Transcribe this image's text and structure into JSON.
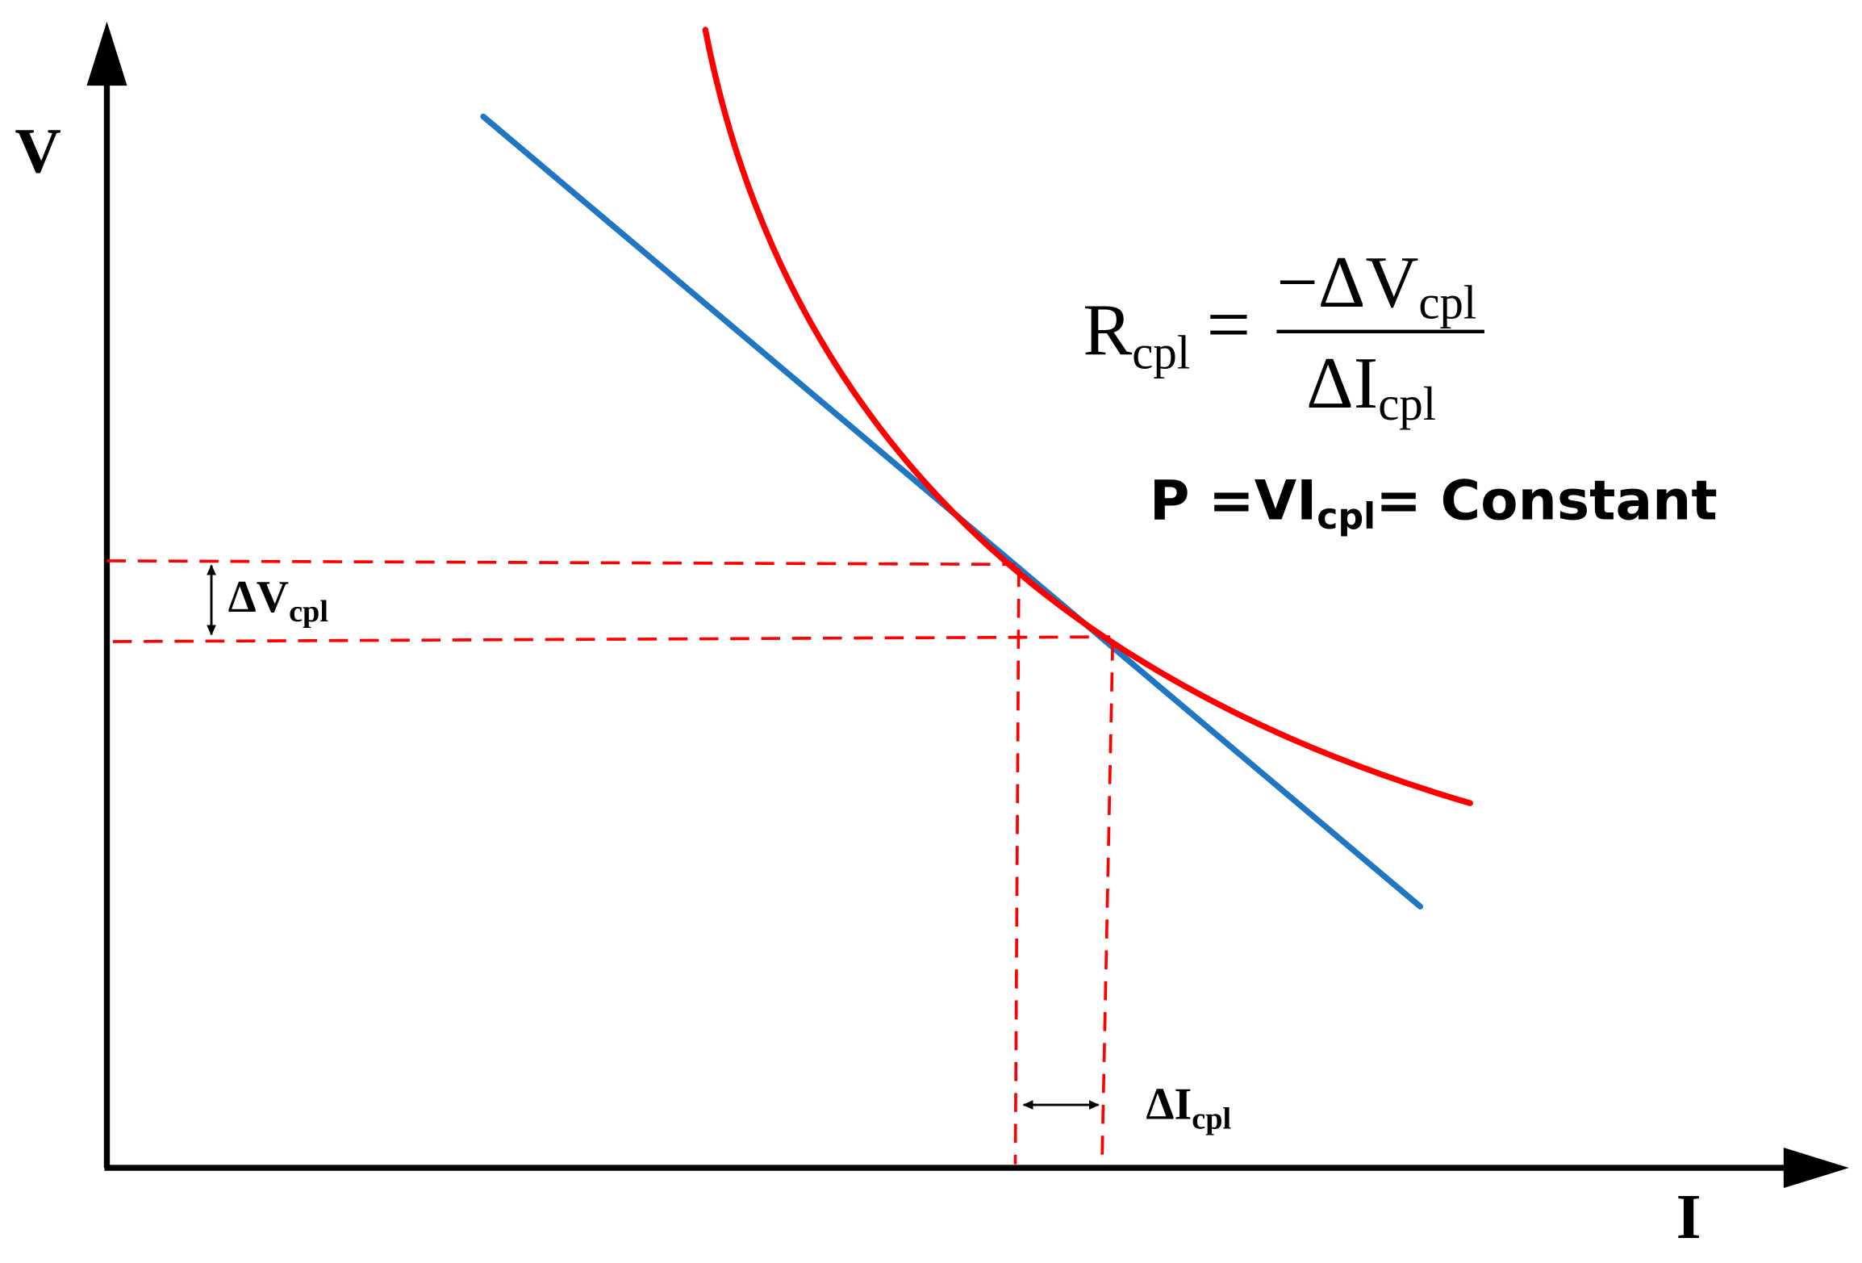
{
  "axes": {
    "y_label": "V",
    "x_label": "I"
  },
  "formula": {
    "lhs": {
      "base": "R",
      "sub": "cpl"
    },
    "equals": "=",
    "numerator": {
      "base": "−ΔV",
      "sub": "cpl"
    },
    "denominator": {
      "base": "ΔI",
      "sub": "cpl"
    }
  },
  "power": {
    "lhs": "P =VI",
    "sub": "cpl",
    "rhs": "= Constant"
  },
  "annotations": {
    "delta_v": {
      "base": "ΔV",
      "sub": "cpl"
    },
    "delta_i": {
      "base": "ΔI",
      "sub": "cpl"
    }
  }
}
